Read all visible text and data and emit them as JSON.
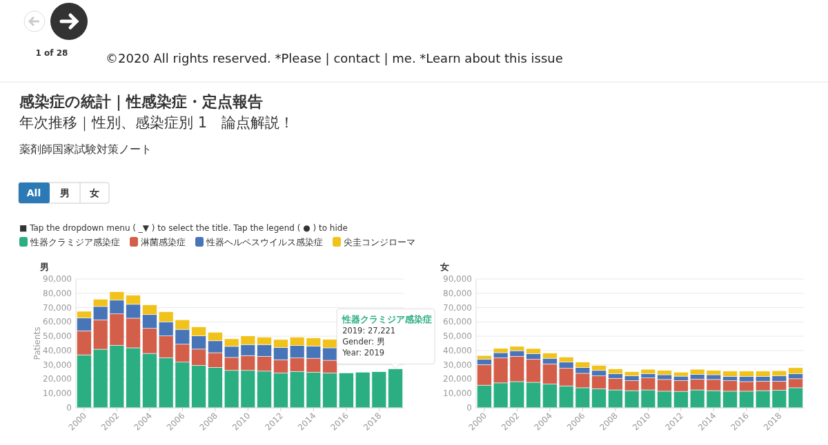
{
  "chart_data": [
    {
      "type": "bar",
      "stacked": true,
      "title": "男",
      "ylabel": "Patients",
      "grid": "y",
      "legend": "top",
      "x": [
        2000,
        2001,
        2002,
        2003,
        2004,
        2005,
        2006,
        2007,
        2008,
        2009,
        2010,
        2011,
        2012,
        2013,
        2014,
        2015,
        2016,
        2017,
        2018,
        2019
      ],
      "xlim": [
        1999.5,
        2019.5
      ],
      "xticks": [
        2000,
        2002,
        2004,
        2006,
        2008,
        2010,
        2012,
        2014,
        2016,
        2018
      ],
      "ylim": [
        0,
        90000
      ],
      "yticks": [
        0,
        {
          "value": 10000,
          "label": "10,000"
        },
        {
          "value": 20000,
          "label": "20,000"
        },
        {
          "value": 30000,
          "label": "30,000"
        },
        {
          "value": 40000,
          "label": "40,000"
        },
        {
          "value": 50000,
          "label": "50,000"
        },
        {
          "value": 60000,
          "label": "60,000"
        },
        {
          "value": 70000,
          "label": "70,000"
        },
        {
          "value": 80000,
          "label": "80,000"
        },
        {
          "value": 90000,
          "label": "90,000"
        }
      ],
      "series": [
        {
          "name": "性器クラミジア感染症",
          "color": "#2aae82",
          "values": [
            37000,
            40900,
            43700,
            41900,
            38000,
            34900,
            31900,
            29700,
            28200,
            26100,
            26100,
            25600,
            24400,
            25400,
            24900,
            24400,
            24400,
            24900,
            25200,
            27221
          ]
        },
        {
          "name": "淋菌感染症",
          "color": "#d35f4b",
          "values": [
            16800,
            20600,
            21900,
            20700,
            17500,
            15300,
            12600,
            11300,
            10300,
            9100,
            10400,
            10400,
            9200,
            9500,
            9700,
            8800,
            null,
            null,
            null,
            null
          ]
        },
        {
          "name": "性器ヘルペスウイルス感染症",
          "color": "#4874b8",
          "values": [
            9000,
            9300,
            9600,
            9700,
            9600,
            9900,
            10300,
            9200,
            8300,
            7700,
            7700,
            8200,
            8600,
            8600,
            8600,
            8700,
            null,
            null,
            null,
            null
          ]
        },
        {
          "name": "尖圭コンジローマ",
          "color": "#f1c21b",
          "values": [
            4600,
            5100,
            5900,
            6400,
            6800,
            7000,
            6700,
            6300,
            6000,
            5300,
            6000,
            5100,
            5500,
            5800,
            5600,
            5900,
            null,
            null,
            null,
            null
          ]
        }
      ],
      "annotations": [
        "1 of 28",
        "©2020 All rights reserved. *Please | contact | me. *Learn about this issue",
        "感染症の統計｜性感染症・定点報告",
        "年次推移｜性別、感染症別 1　論点解説！",
        "薬剤師国家試験対策ノート",
        "■ Tap the dropdown menu ( _▼ ) to select the title. Tap the legend ( ● ) to hide",
        "All",
        "男",
        "女",
        {
          "text": "性器クラミジア感染症\n2019: 27,221\nGender: 男\nYear: 2019",
          "x": 2019,
          "y": 27221
        }
      ]
    },
    {
      "type": "bar",
      "stacked": true,
      "title": "女",
      "grid": "y",
      "x": [
        2000,
        2001,
        2002,
        2003,
        2004,
        2005,
        2006,
        2007,
        2008,
        2009,
        2010,
        2011,
        2012,
        2013,
        2014,
        2015,
        2016,
        2017,
        2018,
        2019
      ],
      "xlim": [
        1999.5,
        2019.5
      ],
      "xticks": [
        2000,
        2002,
        2004,
        2006,
        2008,
        2010,
        2012,
        2014,
        2016,
        2018
      ],
      "ylim": [
        0,
        90000
      ],
      "yticks": [
        0,
        {
          "value": 10000,
          "label": "10,000"
        },
        {
          "value": 20000,
          "label": "20,000"
        },
        {
          "value": 30000,
          "label": "30,000"
        },
        {
          "value": 40000,
          "label": "40,000"
        },
        {
          "value": 50000,
          "label": "50,000"
        },
        {
          "value": 60000,
          "label": "60,000"
        },
        {
          "value": 70000,
          "label": "70,000"
        },
        {
          "value": 80000,
          "label": "80,000"
        },
        {
          "value": 90000,
          "label": "90,000"
        }
      ],
      "series": [
        {
          "color": "#2aae82",
          "values": [
            15800,
            17400,
            18300,
            17800,
            16600,
            15300,
            14000,
            13300,
            12500,
            12000,
            12500,
            11600,
            11500,
            12500,
            12000,
            11600,
            11600,
            12000,
            12300,
            14000
          ]
        },
        {
          "color": "#d35f4b",
          "values": [
            14400,
            17500,
            17700,
            16100,
            14100,
            12300,
            10100,
            9000,
            8100,
            7000,
            8400,
            8200,
            7500,
            7500,
            7800,
            7400,
            6700,
            6600,
            6300,
            6300
          ]
        },
        {
          "color": "#4874b8",
          "values": [
            3700,
            3600,
            3900,
            4000,
            3900,
            4300,
            4100,
            3800,
            3300,
            3300,
            3000,
            3300,
            3100,
            3300,
            3300,
            3000,
            3700,
            3400,
            3700,
            3600
          ]
        },
        {
          "color": "#f1c21b",
          "values": [
            2600,
            3000,
            3000,
            3500,
            3600,
            3600,
            3700,
            3500,
            3300,
            2900,
            3000,
            3000,
            2800,
            3600,
            3000,
            3600,
            3600,
            3600,
            3600,
            4100
          ]
        }
      ]
    }
  ]
}
